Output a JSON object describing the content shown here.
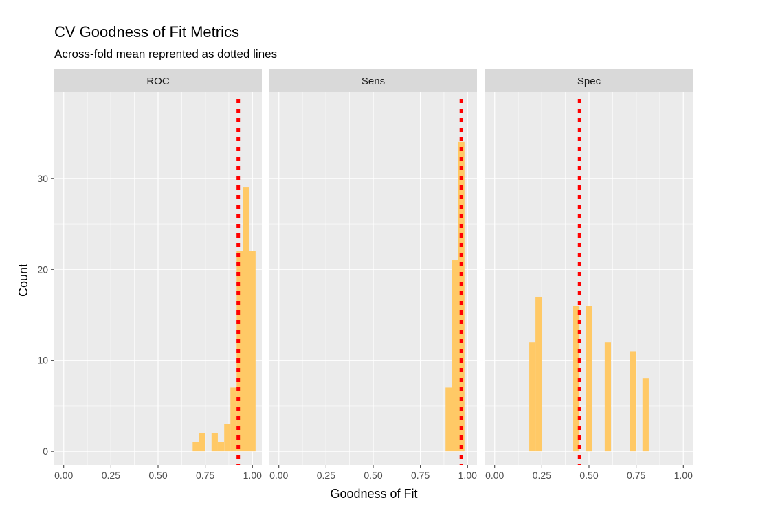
{
  "chart_data": {
    "type": "bar",
    "title": "CV Goodness of Fit Metrics",
    "subtitle": "Across-fold mean reprented as dotted lines",
    "xlabel": "Goodness of Fit",
    "ylabel": "Count",
    "xlim": [
      -0.05,
      1.05
    ],
    "ylim": [
      -1.5,
      39.5
    ],
    "x_ticks": [
      0,
      0.25,
      0.5,
      0.75,
      1
    ],
    "x_tick_labels": [
      "0.00",
      "0.25",
      "0.50",
      "0.75",
      "1.00"
    ],
    "y_ticks": [
      0,
      10,
      20,
      30
    ],
    "y_tick_labels": [
      "0",
      "10",
      "20",
      "30"
    ],
    "bin_width": 0.0333,
    "grid": true,
    "legend": "none",
    "facets": [
      {
        "name": "ROC",
        "mean": 0.925,
        "bins": [
          {
            "x": 0.7,
            "count": 1
          },
          {
            "x": 0.733,
            "count": 2
          },
          {
            "x": 0.8,
            "count": 2
          },
          {
            "x": 0.833,
            "count": 1
          },
          {
            "x": 0.867,
            "count": 3
          },
          {
            "x": 0.9,
            "count": 7
          },
          {
            "x": 0.933,
            "count": 22
          },
          {
            "x": 0.967,
            "count": 29
          },
          {
            "x": 1.0,
            "count": 22
          }
        ]
      },
      {
        "name": "Sens",
        "mean": 0.967,
        "bins": [
          {
            "x": 0.9,
            "count": 7
          },
          {
            "x": 0.933,
            "count": 21
          },
          {
            "x": 0.967,
            "count": 34
          }
        ]
      },
      {
        "name": "Spec",
        "mean": 0.45,
        "bins": [
          {
            "x": 0.2,
            "count": 12
          },
          {
            "x": 0.233,
            "count": 17
          },
          {
            "x": 0.433,
            "count": 16
          },
          {
            "x": 0.5,
            "count": 16
          },
          {
            "x": 0.6,
            "count": 12
          },
          {
            "x": 0.733,
            "count": 11
          },
          {
            "x": 0.8,
            "count": 8
          }
        ]
      }
    ],
    "colors": {
      "bar": "#ffc966",
      "mean_line": "#ff0000",
      "panel_bg": "#ebebeb",
      "strip_bg": "#d9d9d9",
      "grid": "#ffffff"
    }
  }
}
